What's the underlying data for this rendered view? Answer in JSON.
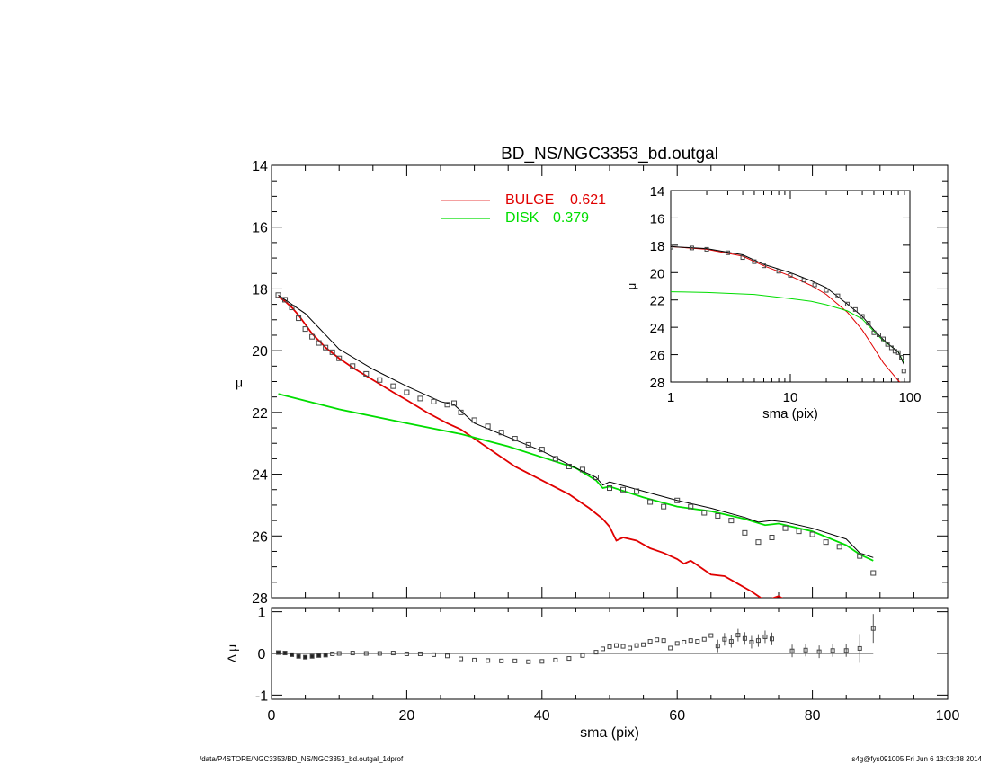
{
  "footer": {
    "left": "/data/P4STORE/NGC3353/BD_NS/NGC3353_bd.outgal_1dprof",
    "right": "s4g@fys091005  Fri Jun  6 13:03:38 2014"
  },
  "colors": {
    "bulge": "#e00000",
    "disk": "#00dd00",
    "model": "#000000",
    "data": "#444444"
  },
  "chart_data": [
    {
      "type": "line",
      "title": "BD_NS/NGC3353_bd.outgal",
      "xlabel": "",
      "ylabel": "μ",
      "xlim": [
        0,
        100
      ],
      "ylim": [
        28,
        14
      ],
      "y_inverted": true,
      "yticks": [
        14,
        16,
        18,
        20,
        22,
        24,
        26,
        28
      ],
      "legend": [
        {
          "name": "BULGE",
          "value": "0.621",
          "color": "#e00000"
        },
        {
          "name": "DISK",
          "value": "0.379",
          "color": "#00dd00"
        }
      ],
      "legend_placement": "top-center",
      "series": [
        {
          "name": "BULGE",
          "color": "#e00000",
          "x": [
            1,
            2,
            3,
            4,
            6,
            8,
            10,
            12,
            15,
            18,
            20,
            23,
            26,
            28,
            30,
            33,
            36,
            40,
            44,
            47,
            49,
            50,
            51,
            52,
            54,
            56,
            58,
            60,
            61,
            62,
            63,
            65,
            67,
            69,
            71,
            72,
            73,
            75,
            77
          ],
          "y": [
            18.25,
            18.4,
            18.6,
            18.85,
            19.45,
            19.9,
            20.25,
            20.55,
            20.95,
            21.35,
            21.6,
            22.0,
            22.35,
            22.55,
            22.85,
            23.3,
            23.75,
            24.2,
            24.65,
            25.1,
            25.45,
            25.7,
            26.15,
            26.05,
            26.15,
            26.4,
            26.55,
            26.75,
            26.9,
            26.8,
            26.95,
            27.25,
            27.3,
            27.55,
            27.8,
            27.95,
            28.1,
            27.95,
            28.2
          ]
        },
        {
          "name": "DISK",
          "color": "#00dd00",
          "x": [
            1,
            10,
            20,
            28,
            35,
            40,
            45,
            48,
            49,
            50,
            55,
            60,
            65,
            70,
            73,
            75,
            80,
            85,
            87,
            89
          ],
          "y": [
            21.4,
            21.9,
            22.35,
            22.7,
            23.1,
            23.45,
            23.8,
            24.2,
            24.45,
            24.4,
            24.75,
            25.05,
            25.2,
            25.45,
            25.65,
            25.6,
            25.85,
            26.3,
            26.6,
            26.8
          ]
        },
        {
          "name": "",
          "color": "#000000",
          "x": [
            1,
            5,
            10,
            15,
            20,
            25,
            27,
            30,
            35,
            40,
            45,
            48,
            49,
            50,
            55,
            60,
            65,
            70,
            72,
            74,
            76,
            80,
            85,
            87,
            89
          ],
          "y": [
            18.2,
            18.8,
            19.95,
            20.6,
            21.15,
            21.65,
            21.75,
            22.35,
            22.8,
            23.25,
            23.8,
            24.1,
            24.35,
            24.25,
            24.55,
            24.85,
            25.1,
            25.4,
            25.55,
            25.5,
            25.55,
            25.75,
            26.1,
            26.55,
            26.7
          ]
        },
        {
          "name": "",
          "color": "#444444",
          "markers": "square",
          "x": [
            1,
            2,
            3,
            4,
            5,
            6,
            7,
            8,
            9,
            10,
            12,
            14,
            16,
            18,
            20,
            22,
            24,
            26,
            27,
            28,
            30,
            32,
            34,
            36,
            38,
            40,
            42,
            44,
            46,
            48,
            50,
            52,
            54,
            56,
            58,
            60,
            62,
            64,
            66,
            68,
            70,
            72,
            74,
            76,
            78,
            80,
            82,
            84,
            87,
            89
          ],
          "y": [
            18.2,
            18.35,
            18.6,
            18.95,
            19.3,
            19.55,
            19.75,
            19.9,
            20.05,
            20.25,
            20.5,
            20.75,
            20.95,
            21.15,
            21.35,
            21.55,
            21.65,
            21.75,
            21.7,
            22.0,
            22.25,
            22.45,
            22.65,
            22.85,
            23.05,
            23.2,
            23.5,
            23.75,
            23.85,
            24.1,
            24.45,
            24.5,
            24.55,
            24.9,
            25.05,
            24.85,
            25.05,
            25.25,
            25.35,
            25.5,
            25.9,
            26.2,
            26.05,
            25.75,
            25.85,
            25.95,
            26.2,
            26.35,
            26.65,
            27.2
          ]
        }
      ]
    },
    {
      "type": "scatter",
      "xlabel": "sma (pix)",
      "ylabel": "Δ μ",
      "xlim": [
        0,
        100
      ],
      "ylim": [
        -1.1,
        1.1
      ],
      "xticks": [
        0,
        20,
        40,
        60,
        80,
        100
      ],
      "yticks": [
        1,
        0,
        -1
      ],
      "reference_line": 0,
      "series": [
        {
          "name": "",
          "color": "#444444",
          "x": [
            1,
            2,
            3,
            4,
            5,
            6,
            7,
            8,
            9,
            10,
            12,
            14,
            16,
            18,
            20,
            22,
            24,
            26,
            28,
            30,
            32,
            34,
            36,
            38,
            40,
            42,
            44,
            46,
            48,
            49,
            50,
            51,
            52,
            53,
            54,
            55,
            56,
            57,
            58,
            59,
            60,
            61,
            62,
            63,
            64,
            65,
            66,
            67,
            68,
            69,
            70,
            71,
            72,
            73,
            74,
            77,
            79,
            81,
            83,
            85,
            87,
            89
          ],
          "y": [
            0.02,
            0.01,
            -0.03,
            -0.07,
            -0.09,
            -0.07,
            -0.05,
            -0.04,
            -0.01,
            0.0,
            0.01,
            0.0,
            0.0,
            0.01,
            -0.01,
            -0.01,
            -0.03,
            -0.06,
            -0.13,
            -0.16,
            -0.17,
            -0.18,
            -0.18,
            -0.2,
            -0.19,
            -0.16,
            -0.12,
            -0.05,
            0.03,
            0.11,
            0.16,
            0.19,
            0.17,
            0.13,
            0.19,
            0.21,
            0.29,
            0.33,
            0.31,
            0.13,
            0.24,
            0.27,
            0.31,
            0.29,
            0.34,
            0.43,
            0.18,
            0.34,
            0.29,
            0.44,
            0.36,
            0.27,
            0.31,
            0.4,
            0.35,
            0.06,
            0.08,
            0.04,
            0.07,
            0.07,
            0.12,
            0.6
          ]
        }
      ]
    },
    {
      "type": "line",
      "xlabel": "sma (pix)",
      "ylabel": "μ",
      "xscale": "log",
      "xlim": [
        1,
        100
      ],
      "ylim": [
        28,
        14
      ],
      "xticks": [
        1,
        10,
        100
      ],
      "yticks": [
        14,
        16,
        18,
        20,
        22,
        24,
        26,
        28
      ],
      "series": [
        {
          "name": "",
          "color": "#e00000",
          "x": [
            1,
            2,
            4,
            6,
            10,
            15,
            20,
            30,
            40,
            50,
            60,
            70,
            80,
            90
          ],
          "y": [
            18.1,
            18.3,
            18.8,
            19.5,
            20.25,
            20.95,
            21.6,
            22.9,
            24.2,
            25.5,
            26.6,
            27.3,
            27.9,
            28.3
          ]
        },
        {
          "name": "",
          "color": "#00dd00",
          "x": [
            1,
            2,
            5,
            10,
            15,
            20,
            30,
            40,
            50,
            60,
            70,
            80,
            89
          ],
          "y": [
            21.4,
            21.45,
            21.6,
            21.9,
            22.1,
            22.35,
            22.8,
            23.4,
            24.3,
            25.0,
            25.4,
            25.8,
            26.6
          ]
        },
        {
          "name": "",
          "color": "#000000",
          "x": [
            1,
            2,
            4,
            6,
            10,
            15,
            20,
            30,
            40,
            50,
            60,
            70,
            80,
            89
          ],
          "y": [
            18.1,
            18.25,
            18.7,
            19.4,
            20.0,
            20.6,
            21.1,
            22.3,
            23.2,
            24.2,
            24.9,
            25.4,
            25.8,
            26.7
          ]
        },
        {
          "name": "",
          "color": "#444444",
          "markers": "square",
          "x": [
            1,
            1.5,
            2,
            3,
            4,
            5,
            6,
            8,
            10,
            13,
            16,
            20,
            25,
            30,
            35,
            40,
            45,
            50,
            55,
            60,
            65,
            70,
            75,
            80,
            85,
            89
          ],
          "y": [
            18.15,
            18.2,
            18.3,
            18.55,
            18.9,
            19.2,
            19.5,
            19.9,
            20.2,
            20.55,
            20.9,
            21.3,
            21.7,
            22.3,
            22.7,
            23.2,
            23.7,
            24.4,
            24.55,
            24.85,
            25.25,
            25.5,
            25.75,
            25.85,
            26.2,
            27.2
          ]
        }
      ]
    }
  ]
}
